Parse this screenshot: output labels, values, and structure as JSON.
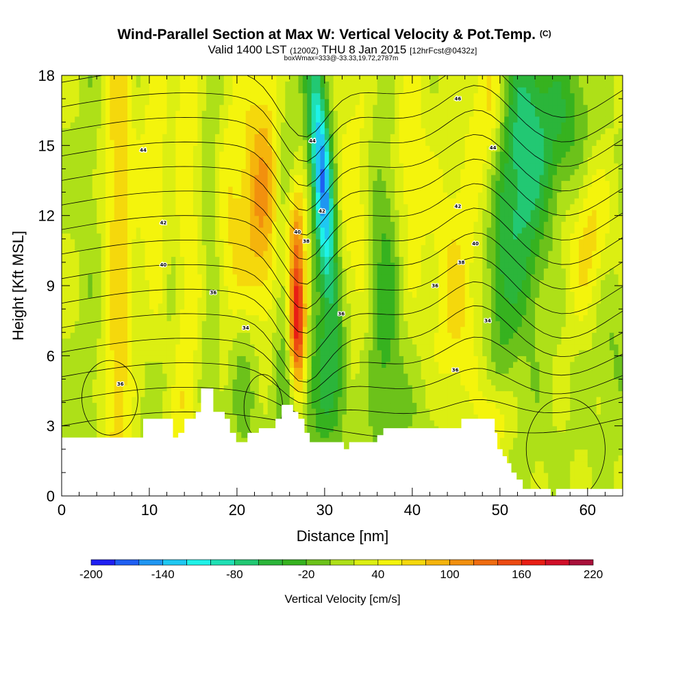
{
  "chart_data": {
    "type": "heatmap",
    "title": "Wind-Parallel Section at Max W: Vertical Velocity & Pot.Temp.",
    "title_mark": "(C)",
    "subtitle_parts": [
      "Valid 1400 LST",
      "(1200Z)",
      "THU 8 Jan 2015",
      "[12hrFcst@0432z]"
    ],
    "subtitle2": "boxWmax=333@-33.33,19.72,2787m",
    "xlabel": "Distance [nm]",
    "ylabel": "Height [Kft MSL]",
    "xlim": [
      0,
      64
    ],
    "ylim": [
      0,
      18
    ],
    "xticks": [
      0,
      10,
      20,
      30,
      40,
      50,
      60
    ],
    "yticks": [
      0,
      3,
      6,
      9,
      12,
      15,
      18
    ],
    "colorbar": {
      "label": "Vertical Velocity [cm/s]",
      "ticks": [
        -200,
        -140,
        -80,
        -20,
        40,
        100,
        160,
        220
      ],
      "bounds": [
        -200,
        -180,
        -160,
        -140,
        -120,
        -100,
        -80,
        -60,
        -40,
        -20,
        0,
        20,
        40,
        60,
        80,
        100,
        120,
        140,
        160,
        180,
        200,
        220
      ],
      "colors": [
        "#1f1ff2",
        "#1f5ff2",
        "#1f96f2",
        "#1fc8f2",
        "#1ff2e8",
        "#1fe0b4",
        "#22c873",
        "#2bb53a",
        "#36b21f",
        "#6cc21a",
        "#aee018",
        "#dcef12",
        "#f4f40c",
        "#f5d80c",
        "#f5b40c",
        "#f2900e",
        "#ef6c10",
        "#ec4a12",
        "#e81e14",
        "#d00e28",
        "#a8103a"
      ]
    },
    "terrain": [
      [
        0,
        2.5
      ],
      [
        9.3,
        2.5
      ],
      [
        9.3,
        3.3
      ],
      [
        12.7,
        3.3
      ],
      [
        12.7,
        2.5
      ],
      [
        13.3,
        2.5
      ],
      [
        13.3,
        2.7
      ],
      [
        14.0,
        2.7
      ],
      [
        14.0,
        3.3
      ],
      [
        15.3,
        3.3
      ],
      [
        15.3,
        3.6
      ],
      [
        15.9,
        3.6
      ],
      [
        15.9,
        4.6
      ],
      [
        17.3,
        4.6
      ],
      [
        17.3,
        3.6
      ],
      [
        18.6,
        3.6
      ],
      [
        18.6,
        3.3
      ],
      [
        19.2,
        3.3
      ],
      [
        19.2,
        2.7
      ],
      [
        19.9,
        2.7
      ],
      [
        19.9,
        2.3
      ],
      [
        21.2,
        2.3
      ],
      [
        21.2,
        2.7
      ],
      [
        22.5,
        2.7
      ],
      [
        22.5,
        2.9
      ],
      [
        24.4,
        2.9
      ],
      [
        24.4,
        3.3
      ],
      [
        25.1,
        3.3
      ],
      [
        25.1,
        3.9
      ],
      [
        26.4,
        3.9
      ],
      [
        26.4,
        3.6
      ],
      [
        27.0,
        3.6
      ],
      [
        27.0,
        3.3
      ],
      [
        27.7,
        3.3
      ],
      [
        27.7,
        2.7
      ],
      [
        28.3,
        2.7
      ],
      [
        28.3,
        2.3
      ],
      [
        32.2,
        2.3
      ],
      [
        32.2,
        2.0
      ],
      [
        32.8,
        2.0
      ],
      [
        32.8,
        2.3
      ],
      [
        36.0,
        2.3
      ],
      [
        36.0,
        2.6
      ],
      [
        36.7,
        2.6
      ],
      [
        36.7,
        2.9
      ],
      [
        45.6,
        2.9
      ],
      [
        45.6,
        3.3
      ],
      [
        49.4,
        3.3
      ],
      [
        49.4,
        2.7
      ],
      [
        49.7,
        2.7
      ],
      [
        49.7,
        2.0
      ],
      [
        50.3,
        2.0
      ],
      [
        50.3,
        1.7
      ],
      [
        50.8,
        1.7
      ],
      [
        50.8,
        1.4
      ],
      [
        51.3,
        1.4
      ],
      [
        51.3,
        1.0
      ],
      [
        51.9,
        1.0
      ],
      [
        51.9,
        0.7
      ],
      [
        52.6,
        0.7
      ],
      [
        52.6,
        0.3
      ],
      [
        55.8,
        0.3
      ],
      [
        55.8,
        0.0
      ],
      [
        56.4,
        0.0
      ],
      [
        56.4,
        0.3
      ],
      [
        64,
        0.3
      ],
      [
        64,
        0
      ]
    ],
    "theta_labels": [
      {
        "x": 9.3,
        "y": 14.8,
        "text": "44"
      },
      {
        "x": 28.6,
        "y": 15.2,
        "text": "44"
      },
      {
        "x": 45.2,
        "y": 17.0,
        "text": "46"
      },
      {
        "x": 49.2,
        "y": 14.9,
        "text": "44"
      },
      {
        "x": 11.6,
        "y": 11.7,
        "text": "42"
      },
      {
        "x": 29.7,
        "y": 12.2,
        "text": "42"
      },
      {
        "x": 45.2,
        "y": 12.4,
        "text": "42"
      },
      {
        "x": 26.9,
        "y": 11.3,
        "text": "40"
      },
      {
        "x": 47.2,
        "y": 10.8,
        "text": "40"
      },
      {
        "x": 11.6,
        "y": 9.9,
        "text": "40"
      },
      {
        "x": 27.9,
        "y": 10.9,
        "text": "38"
      },
      {
        "x": 45.6,
        "y": 10.0,
        "text": "38"
      },
      {
        "x": 17.3,
        "y": 8.7,
        "text": "36"
      },
      {
        "x": 42.6,
        "y": 9.0,
        "text": "36"
      },
      {
        "x": 21.0,
        "y": 7.2,
        "text": "34"
      },
      {
        "x": 31.9,
        "y": 7.8,
        "text": "36"
      },
      {
        "x": 48.6,
        "y": 7.5,
        "text": "34"
      },
      {
        "x": 44.9,
        "y": 5.4,
        "text": "36"
      },
      {
        "x": 6.7,
        "y": 4.8,
        "text": "36"
      }
    ]
  }
}
